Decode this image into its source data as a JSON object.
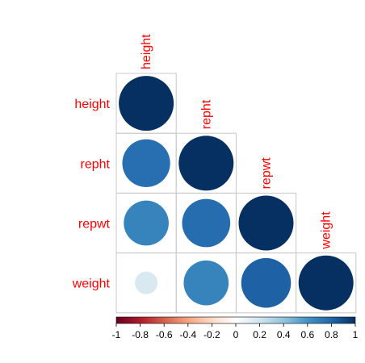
{
  "chart_data": {
    "type": "heatmap",
    "variables": [
      "height",
      "repht",
      "repwt",
      "weight"
    ],
    "matrix": [
      [
        1.0,
        null,
        null,
        null
      ],
      [
        0.76,
        1.0,
        null,
        null
      ],
      [
        0.67,
        0.77,
        1.0,
        null
      ],
      [
        0.17,
        0.67,
        0.82,
        1.0
      ]
    ],
    "color_scale": {
      "min": -1,
      "max": 1,
      "ticks": [
        "-1",
        "-0.8",
        "-0.6",
        "-0.4",
        "-0.2",
        "0",
        "0.2",
        "0.4",
        "0.6",
        "0.8",
        "1"
      ],
      "colors": [
        "#67001F",
        "#B2182B",
        "#D6604D",
        "#F4A582",
        "#FDDBC7",
        "#FFFFFF",
        "#D1E5F0",
        "#92C5DE",
        "#4393C3",
        "#2166AC",
        "#053061"
      ]
    },
    "label_color": "#FF0000",
    "grid": true,
    "legend": "bottom"
  }
}
